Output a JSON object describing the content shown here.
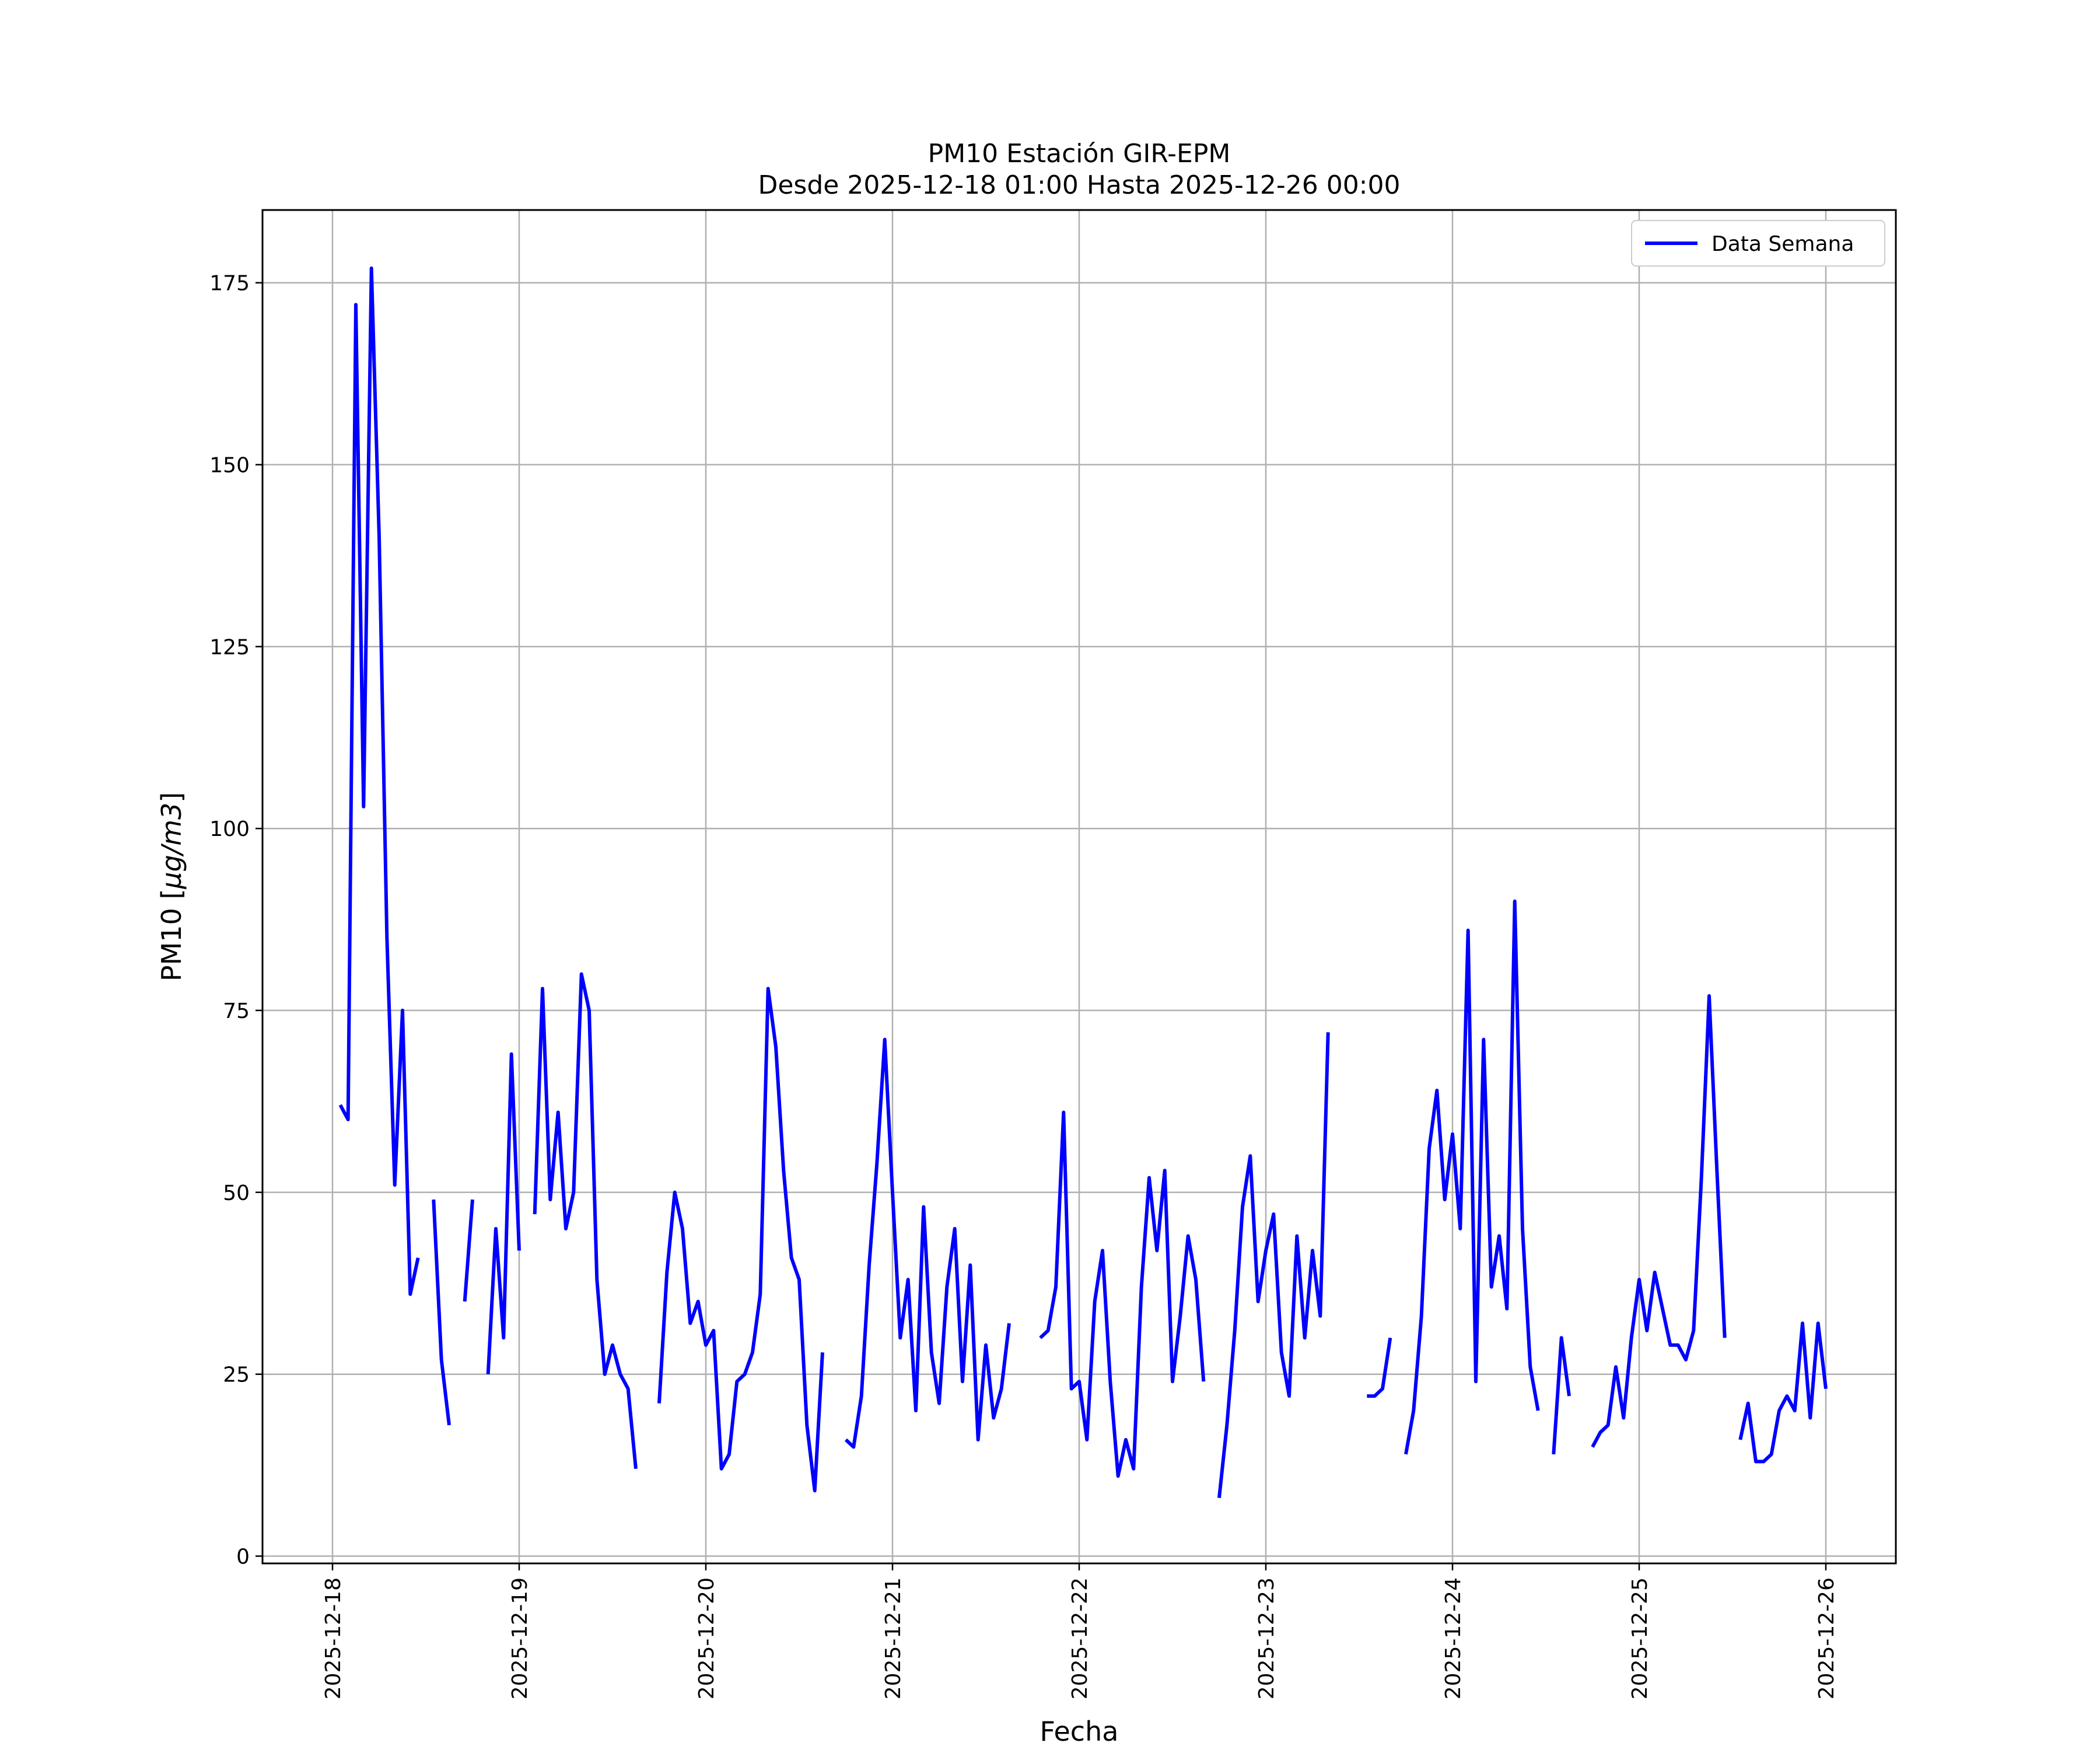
{
  "chart_data": {
    "type": "line",
    "title": "PM10 Estación GIR-EPM",
    "subtitle": "Desde 2025-12-18 01:00 Hasta 2025-12-26 00:00",
    "xlabel": "Fecha",
    "ylabel": "PM10 [μg/m3]",
    "ylabel_parts": {
      "text": "PM10 [",
      "italic": "μg/m3",
      "close": "]"
    },
    "ylim": [
      -1,
      185
    ],
    "xlim": [
      "2025-12-17 15:00",
      "2025-12-26 09:00"
    ],
    "y_ticks": [
      0,
      25,
      50,
      75,
      100,
      125,
      150,
      175
    ],
    "x_ticks": [
      "2025-12-18",
      "2025-12-19",
      "2025-12-20",
      "2025-12-21",
      "2025-12-22",
      "2025-12-23",
      "2025-12-24",
      "2025-12-25",
      "2025-12-26"
    ],
    "grid": true,
    "legend_position": "top-right",
    "series": [
      {
        "name": "Data Semana",
        "color": "#0000ff",
        "segments": [
          [
            [
              "2025-12-18 01:00",
              62
            ],
            [
              "2025-12-18 02:00",
              60
            ],
            [
              "2025-12-18 03:00",
              172
            ],
            [
              "2025-12-18 04:00",
              103
            ],
            [
              "2025-12-18 05:00",
              177
            ],
            [
              "2025-12-18 06:00",
              140
            ],
            [
              "2025-12-18 07:00",
              85
            ],
            [
              "2025-12-18 08:00",
              51
            ],
            [
              "2025-12-18 09:00",
              75
            ],
            [
              "2025-12-18 10:00",
              36
            ],
            [
              "2025-12-18 11:00",
              41
            ]
          ],
          [
            [
              "2025-12-18 13:00",
              49
            ],
            [
              "2025-12-18 14:00",
              27
            ],
            [
              "2025-12-18 15:00",
              18
            ]
          ],
          [
            [
              "2025-12-18 17:00",
              35
            ],
            [
              "2025-12-18 18:00",
              49
            ]
          ],
          [
            [
              "2025-12-18 20:00",
              25
            ],
            [
              "2025-12-18 21:00",
              45
            ],
            [
              "2025-12-18 22:00",
              30
            ],
            [
              "2025-12-18 23:00",
              69
            ],
            [
              "2025-12-19 00:00",
              42
            ]
          ],
          [
            [
              "2025-12-19 02:00",
              47
            ],
            [
              "2025-12-19 03:00",
              78
            ],
            [
              "2025-12-19 04:00",
              49
            ],
            [
              "2025-12-19 05:00",
              61
            ],
            [
              "2025-12-19 06:00",
              45
            ],
            [
              "2025-12-19 07:00",
              50
            ],
            [
              "2025-12-19 08:00",
              80
            ],
            [
              "2025-12-19 09:00",
              75
            ],
            [
              "2025-12-19 10:00",
              38
            ],
            [
              "2025-12-19 11:00",
              25
            ],
            [
              "2025-12-19 12:00",
              29
            ],
            [
              "2025-12-19 13:00",
              25
            ],
            [
              "2025-12-19 14:00",
              23
            ],
            [
              "2025-12-19 15:00",
              12
            ]
          ],
          [
            [
              "2025-12-19 18:00",
              21
            ],
            [
              "2025-12-19 19:00",
              39
            ],
            [
              "2025-12-19 20:00",
              50
            ],
            [
              "2025-12-19 21:00",
              45
            ],
            [
              "2025-12-19 22:00",
              32
            ],
            [
              "2025-12-19 23:00",
              35
            ],
            [
              "2025-12-20 00:00",
              29
            ],
            [
              "2025-12-20 01:00",
              31
            ],
            [
              "2025-12-20 02:00",
              12
            ],
            [
              "2025-12-20 03:00",
              14
            ],
            [
              "2025-12-20 04:00",
              24
            ],
            [
              "2025-12-20 05:00",
              25
            ],
            [
              "2025-12-20 06:00",
              28
            ],
            [
              "2025-12-20 07:00",
              36
            ],
            [
              "2025-12-20 08:00",
              78
            ],
            [
              "2025-12-20 09:00",
              70
            ],
            [
              "2025-12-20 10:00",
              53
            ],
            [
              "2025-12-20 11:00",
              41
            ],
            [
              "2025-12-20 12:00",
              38
            ],
            [
              "2025-12-20 13:00",
              18
            ],
            [
              "2025-12-20 14:00",
              9
            ],
            [
              "2025-12-20 15:00",
              28
            ]
          ],
          [
            [
              "2025-12-20 18:00",
              16
            ],
            [
              "2025-12-20 19:00",
              15
            ],
            [
              "2025-12-20 20:00",
              22
            ],
            [
              "2025-12-20 21:00",
              40
            ],
            [
              "2025-12-20 22:00",
              54
            ],
            [
              "2025-12-20 23:00",
              71
            ],
            [
              "2025-12-21 00:00",
              50
            ],
            [
              "2025-12-21 01:00",
              30
            ],
            [
              "2025-12-21 02:00",
              38
            ],
            [
              "2025-12-21 03:00",
              20
            ],
            [
              "2025-12-21 04:00",
              48
            ],
            [
              "2025-12-21 05:00",
              28
            ],
            [
              "2025-12-21 06:00",
              21
            ],
            [
              "2025-12-21 07:00",
              37
            ],
            [
              "2025-12-21 08:00",
              45
            ],
            [
              "2025-12-21 09:00",
              24
            ],
            [
              "2025-12-21 10:00",
              40
            ],
            [
              "2025-12-21 11:00",
              16
            ],
            [
              "2025-12-21 12:00",
              29
            ],
            [
              "2025-12-21 13:00",
              19
            ],
            [
              "2025-12-21 14:00",
              23
            ],
            [
              "2025-12-21 15:00",
              32
            ]
          ],
          [
            [
              "2025-12-21 19:00",
              30
            ],
            [
              "2025-12-21 20:00",
              31
            ],
            [
              "2025-12-21 21:00",
              37
            ],
            [
              "2025-12-21 22:00",
              61
            ],
            [
              "2025-12-21 23:00",
              23
            ],
            [
              "2025-12-22 00:00",
              24
            ],
            [
              "2025-12-22 01:00",
              16
            ],
            [
              "2025-12-22 02:00",
              35
            ],
            [
              "2025-12-22 03:00",
              42
            ],
            [
              "2025-12-22 04:00",
              24
            ],
            [
              "2025-12-22 05:00",
              11
            ],
            [
              "2025-12-22 06:00",
              16
            ],
            [
              "2025-12-22 07:00",
              12
            ],
            [
              "2025-12-22 08:00",
              37
            ],
            [
              "2025-12-22 09:00",
              52
            ],
            [
              "2025-12-22 10:00",
              42
            ],
            [
              "2025-12-22 11:00",
              53
            ],
            [
              "2025-12-22 12:00",
              24
            ],
            [
              "2025-12-22 13:00",
              33
            ],
            [
              "2025-12-22 14:00",
              44
            ],
            [
              "2025-12-22 15:00",
              38
            ],
            [
              "2025-12-22 16:00",
              24
            ]
          ],
          [
            [
              "2025-12-22 18:00",
              8
            ],
            [
              "2025-12-22 19:00",
              18
            ],
            [
              "2025-12-22 20:00",
              31
            ],
            [
              "2025-12-22 21:00",
              48
            ],
            [
              "2025-12-22 22:00",
              55
            ],
            [
              "2025-12-22 23:00",
              35
            ],
            [
              "2025-12-23 00:00",
              42
            ],
            [
              "2025-12-23 01:00",
              47
            ],
            [
              "2025-12-23 02:00",
              28
            ],
            [
              "2025-12-23 03:00",
              22
            ],
            [
              "2025-12-23 04:00",
              44
            ],
            [
              "2025-12-23 05:00",
              30
            ],
            [
              "2025-12-23 06:00",
              42
            ],
            [
              "2025-12-23 07:00",
              33
            ],
            [
              "2025-12-23 08:00",
              72
            ]
          ],
          [
            [
              "2025-12-23 13:00",
              22
            ],
            [
              "2025-12-23 14:00",
              22
            ],
            [
              "2025-12-23 15:00",
              23
            ],
            [
              "2025-12-23 16:00",
              30
            ]
          ],
          [
            [
              "2025-12-23 18:00",
              14
            ],
            [
              "2025-12-23 19:00",
              20
            ],
            [
              "2025-12-23 20:00",
              33
            ],
            [
              "2025-12-23 21:00",
              56
            ],
            [
              "2025-12-23 22:00",
              64
            ],
            [
              "2025-12-23 23:00",
              49
            ],
            [
              "2025-12-24 00:00",
              58
            ],
            [
              "2025-12-24 01:00",
              45
            ],
            [
              "2025-12-24 02:00",
              86
            ],
            [
              "2025-12-24 03:00",
              24
            ],
            [
              "2025-12-24 04:00",
              71
            ],
            [
              "2025-12-24 05:00",
              37
            ],
            [
              "2025-12-24 06:00",
              44
            ],
            [
              "2025-12-24 07:00",
              34
            ],
            [
              "2025-12-24 08:00",
              90
            ],
            [
              "2025-12-24 09:00",
              45
            ],
            [
              "2025-12-24 10:00",
              26
            ],
            [
              "2025-12-24 11:00",
              20
            ]
          ],
          [
            [
              "2025-12-24 13:00",
              14
            ],
            [
              "2025-12-24 14:00",
              30
            ],
            [
              "2025-12-24 15:00",
              22
            ]
          ],
          [
            [
              "2025-12-24 18:00",
              15
            ],
            [
              "2025-12-24 19:00",
              17
            ],
            [
              "2025-12-24 20:00",
              18
            ],
            [
              "2025-12-24 21:00",
              26
            ],
            [
              "2025-12-24 22:00",
              19
            ],
            [
              "2025-12-24 23:00",
              30
            ],
            [
              "2025-12-25 00:00",
              38
            ],
            [
              "2025-12-25 01:00",
              31
            ],
            [
              "2025-12-25 02:00",
              39
            ],
            [
              "2025-12-25 03:00",
              34
            ],
            [
              "2025-12-25 04:00",
              29
            ],
            [
              "2025-12-25 05:00",
              29
            ],
            [
              "2025-12-25 06:00",
              27
            ],
            [
              "2025-12-25 07:00",
              31
            ],
            [
              "2025-12-25 08:00",
              52
            ],
            [
              "2025-12-25 09:00",
              77
            ],
            [
              "2025-12-25 10:00",
              53
            ],
            [
              "2025-12-25 11:00",
              30
            ]
          ],
          [
            [
              "2025-12-25 13:00",
              16
            ],
            [
              "2025-12-25 14:00",
              21
            ],
            [
              "2025-12-25 15:00",
              13
            ],
            [
              "2025-12-25 16:00",
              13
            ],
            [
              "2025-12-25 17:00",
              14
            ],
            [
              "2025-12-25 18:00",
              20
            ],
            [
              "2025-12-25 19:00",
              22
            ],
            [
              "2025-12-25 20:00",
              20
            ],
            [
              "2025-12-25 21:00",
              32
            ],
            [
              "2025-12-25 22:00",
              19
            ],
            [
              "2025-12-25 23:00",
              32
            ],
            [
              "2025-12-26 00:00",
              23
            ]
          ]
        ]
      }
    ]
  }
}
